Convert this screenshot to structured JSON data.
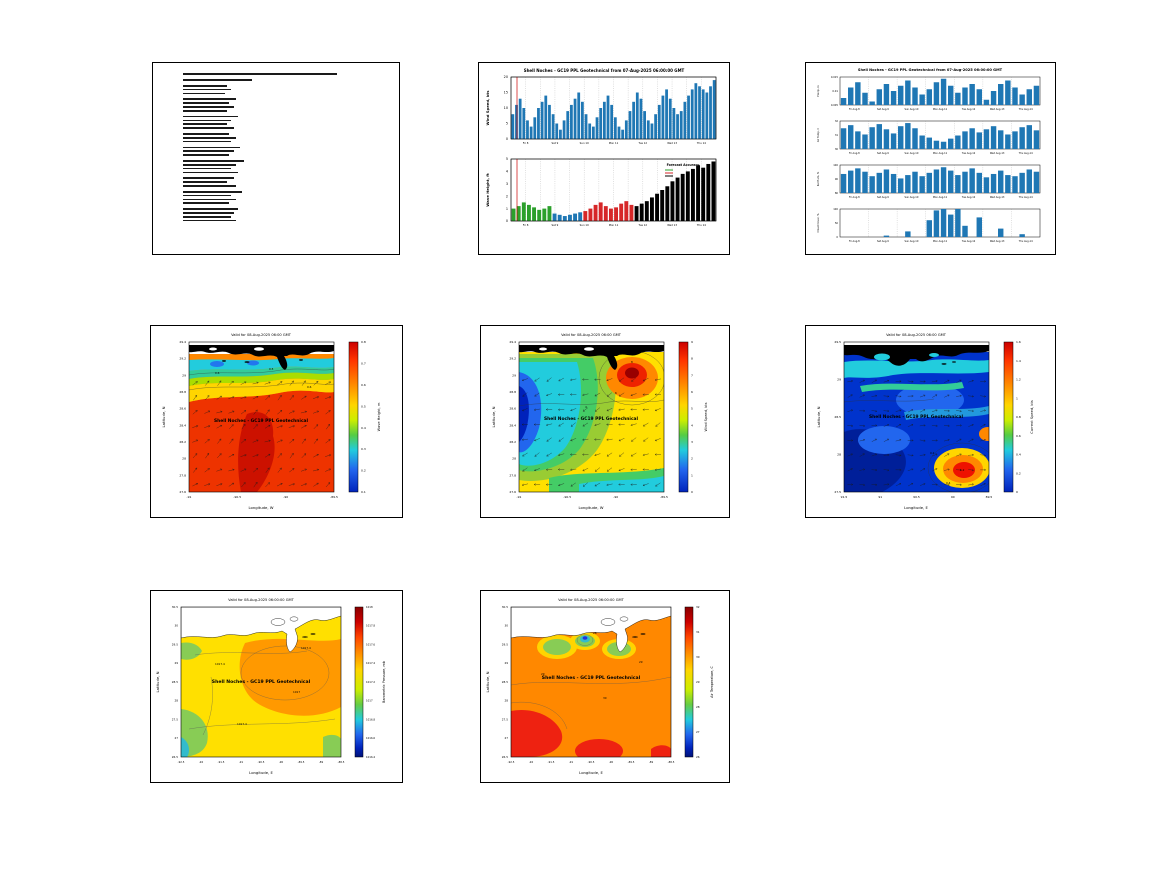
{
  "site_label": "Shell Noches - GC19 PPL Geotechnical",
  "chart_data": [
    {
      "type": "text",
      "name": "marine-forecast-text-report",
      "lines": [
        76,
        0,
        34,
        0,
        22,
        24,
        21,
        0,
        26,
        23,
        25,
        22,
        0,
        27,
        24,
        22,
        25,
        0,
        23,
        26,
        24,
        0,
        28,
        25,
        23,
        0,
        30,
        26,
        24,
        27,
        0,
        25,
        22,
        26,
        0,
        29,
        24,
        26,
        23,
        0,
        27,
        25,
        24,
        26
      ]
    },
    {
      "type": "bar",
      "name": "wind-wave-timeseries",
      "title": "Shell Noches - GC19 PPL Geotechnical from 07-Aug-2025 06:00:00 GMT",
      "xticklabels": [
        "Fri 8",
        "Sat 9",
        "Sun 10",
        "Mon 11",
        "Tue 12",
        "Wed 13",
        "Thu 14"
      ],
      "bar_colors": [
        "#1f77b4",
        "#2ca02c",
        "#d62728",
        "#000000"
      ],
      "wind": {
        "ylabel": "Wind Speed, kts",
        "ylim": [
          0,
          20
        ],
        "yticks": [
          "20",
          "15",
          "10",
          "5",
          "0"
        ],
        "values": [
          8,
          11,
          13,
          10,
          6,
          4,
          7,
          10,
          12,
          14,
          11,
          8,
          5,
          3,
          6,
          9,
          11,
          13,
          15,
          12,
          8,
          5,
          4,
          7,
          10,
          12,
          14,
          11,
          7,
          4,
          3,
          6,
          9,
          12,
          15,
          13,
          9,
          6,
          5,
          8,
          11,
          14,
          16,
          13,
          10,
          8,
          9,
          12,
          14,
          16,
          18,
          17,
          16,
          15,
          17,
          19
        ]
      },
      "wave": {
        "ylabel": "Wave Height, ft",
        "ylim": [
          0,
          5
        ],
        "yticks": [
          "5",
          "4",
          "3",
          "2",
          "1",
          "0"
        ],
        "legend": "Forecast Accuracy",
        "values": [
          {
            "v": 1.0,
            "c": 1
          },
          {
            "v": 1.2,
            "c": 1
          },
          {
            "v": 1.5,
            "c": 1
          },
          {
            "v": 1.3,
            "c": 1
          },
          {
            "v": 1.1,
            "c": 1
          },
          {
            "v": 0.9,
            "c": 1
          },
          {
            "v": 1.0,
            "c": 1
          },
          {
            "v": 1.2,
            "c": 1
          },
          {
            "v": 0.6,
            "c": 0
          },
          {
            "v": 0.5,
            "c": 0
          },
          {
            "v": 0.4,
            "c": 0
          },
          {
            "v": 0.5,
            "c": 0
          },
          {
            "v": 0.6,
            "c": 0
          },
          {
            "v": 0.7,
            "c": 0
          },
          {
            "v": 0.8,
            "c": 2
          },
          {
            "v": 1.0,
            "c": 2
          },
          {
            "v": 1.3,
            "c": 2
          },
          {
            "v": 1.5,
            "c": 2
          },
          {
            "v": 1.2,
            "c": 2
          },
          {
            "v": 1.0,
            "c": 2
          },
          {
            "v": 1.1,
            "c": 2
          },
          {
            "v": 1.4,
            "c": 2
          },
          {
            "v": 1.6,
            "c": 2
          },
          {
            "v": 1.3,
            "c": 2
          },
          {
            "v": 1.2,
            "c": 3
          },
          {
            "v": 1.4,
            "c": 3
          },
          {
            "v": 1.6,
            "c": 3
          },
          {
            "v": 1.9,
            "c": 3
          },
          {
            "v": 2.2,
            "c": 3
          },
          {
            "v": 2.5,
            "c": 3
          },
          {
            "v": 2.8,
            "c": 3
          },
          {
            "v": 3.2,
            "c": 3
          },
          {
            "v": 3.5,
            "c": 3
          },
          {
            "v": 3.8,
            "c": 3
          },
          {
            "v": 4.0,
            "c": 3
          },
          {
            "v": 4.2,
            "c": 3
          },
          {
            "v": 4.5,
            "c": 3
          },
          {
            "v": 4.3,
            "c": 3
          },
          {
            "v": 4.6,
            "c": 3
          },
          {
            "v": 4.8,
            "c": 3
          }
        ]
      }
    },
    {
      "type": "bar",
      "name": "misc-weather-timeseries",
      "title": "Shell Noches - GC19 PPL Geotechnical from 07-Aug-2025 06:00:00 GMT",
      "bar_colors": [
        "#1f77b4"
      ],
      "xticklabels": [
        "Fri Aug-8",
        "Sat Aug-9",
        "Sun Aug-10",
        "Mon Aug-11",
        "Tue Aug-12",
        "Wed Aug-13",
        "Thu Aug-14"
      ],
      "subplots": [
        {
          "ylabel": "Precip, in",
          "yticks": [
            "0.015",
            "0.01",
            "0.005"
          ],
          "ylim": [
            0,
            0.016
          ],
          "values": [
            0.004,
            0.01,
            0.013,
            0.007,
            0.002,
            0.009,
            0.012,
            0.008,
            0.011,
            0.014,
            0.01,
            0.006,
            0.009,
            0.013,
            0.015,
            0.011,
            0.007,
            0.01,
            0.012,
            0.009,
            0.003,
            0.008,
            0.012,
            0.014,
            0.01,
            0.006,
            0.009,
            0.011
          ]
        },
        {
          "ylabel": "Air Temp, C",
          "yticks": [
            "32",
            "31",
            "30"
          ],
          "ylim": [
            29.5,
            32.2
          ],
          "values": [
            31.5,
            31.8,
            31.2,
            30.9,
            31.6,
            31.9,
            31.4,
            31.0,
            31.7,
            32.0,
            31.5,
            30.8,
            30.6,
            30.3,
            30.2,
            30.5,
            30.8,
            31.2,
            31.5,
            31.1,
            31.4,
            31.7,
            31.3,
            30.9,
            31.2,
            31.6,
            31.8,
            31.3
          ]
        },
        {
          "ylabel": "Rel Hum, %",
          "yticks": [
            "100",
            "90",
            "80"
          ],
          "ylim": [
            75,
            100
          ],
          "values": [
            92,
            95,
            97,
            94,
            90,
            93,
            96,
            92,
            88,
            91,
            94,
            90,
            93,
            96,
            98,
            95,
            91,
            94,
            97,
            93,
            89,
            92,
            95,
            91,
            90,
            93,
            96,
            94
          ]
        },
        {
          "ylabel": "Cloud Cover, %",
          "yticks": [
            "100",
            "50",
            "0"
          ],
          "ylim": [
            0,
            100
          ],
          "values": [
            0,
            0,
            0,
            0,
            0,
            0,
            5,
            0,
            0,
            20,
            0,
            0,
            60,
            95,
            100,
            80,
            100,
            40,
            0,
            70,
            0,
            0,
            30,
            0,
            0,
            10,
            0,
            0
          ]
        }
      ]
    },
    {
      "type": "heatmap",
      "subtype": "filled-contour-map",
      "name": "wave-height-map",
      "title": "Valid for 08-Aug-2025 06:00 GMT",
      "xlabel": "Longitude, W",
      "ylabel": "Latitude, N",
      "xticks": [
        "-91",
        "-90.5",
        "-90",
        "-89.5"
      ],
      "yticks": [
        "29.4",
        "29.2",
        "29",
        "28.8",
        "28.6",
        "28.4",
        "28.2",
        "28",
        "27.8",
        "27.6"
      ],
      "colorbar": {
        "label": "Wave Height, m",
        "colormap": "jet",
        "range": [
          0.1,
          0.8
        ],
        "ticks": [
          "0.8",
          "0.7",
          "0.6",
          "0.5",
          "0.4",
          "0.3",
          "0.2",
          "0.1"
        ]
      },
      "contour_labels": [
        "0.6",
        "0.5",
        "0.6"
      ],
      "overlay_label": "Shell Noches - GC19 PPL Geotechnical"
    },
    {
      "type": "heatmap",
      "subtype": "filled-contour-map",
      "name": "wind-speed-map",
      "title": "Valid for 08-Aug-2025 06:00 GMT",
      "xlabel": "Longitude, W",
      "ylabel": "Latitude, N",
      "xticks": [
        "-91",
        "-90.5",
        "-90",
        "-89.5"
      ],
      "yticks": [
        "29.4",
        "29.2",
        "29",
        "28.8",
        "28.6",
        "28.4",
        "28.2",
        "28",
        "27.8",
        "27.6"
      ],
      "colorbar": {
        "label": "Wind Speed, kts",
        "colormap": "jet",
        "range": [
          0,
          9
        ],
        "ticks": [
          "9",
          "8",
          "7",
          "6",
          "5",
          "4",
          "3",
          "2",
          "1",
          "0"
        ]
      },
      "contour_labels": [
        "8",
        "6",
        "4"
      ],
      "overlay_label": "Shell Noches - GC19 PPL Geotechnical"
    },
    {
      "type": "heatmap",
      "subtype": "filled-contour-map",
      "name": "current-speed-map",
      "title": "Valid for 08-Aug-2025 06:00 GMT",
      "xlabel": "Longitude, E",
      "ylabel": "Latitude, N",
      "xticks": [
        "91.5",
        "91",
        "90.5",
        "90",
        "89.5"
      ],
      "yticks": [
        "29.5",
        "29",
        "28.5",
        "28",
        "27.5"
      ],
      "colorbar": {
        "label": "Current Speed, kts",
        "colormap": "jet",
        "range": [
          0,
          1.6
        ],
        "ticks": [
          "1.6",
          "1.4",
          "1.2",
          "1",
          "0.8",
          "0.6",
          "0.4",
          "0.2",
          "0"
        ]
      },
      "contour_labels": [
        "0.2",
        "0.4",
        "1.2"
      ],
      "overlay_label": "Shell Noches - GC19 PPL Geotechnical"
    },
    {
      "type": "heatmap",
      "subtype": "filled-contour-map",
      "name": "barometric-pressure-map",
      "title": "Valid for 08-Aug-2025 06:00:00 GMT",
      "xlabel": "Longitude, E",
      "ylabel": "Latitude, N",
      "xticks": [
        "-92.5",
        "-92",
        "-91.5",
        "-91",
        "-90.5",
        "-90",
        "-89.5",
        "-89",
        "-88.5"
      ],
      "yticks": [
        "30.5",
        "30",
        "29.5",
        "29",
        "28.5",
        "28",
        "27.5",
        "27",
        "26.5"
      ],
      "colorbar": {
        "label": "Barometric Pressure, mb",
        "colormap": "jet",
        "range": [
          1016.4,
          1018
        ],
        "ticks": [
          "1018",
          "1017.8",
          "1017.6",
          "1017.4",
          "1017.2",
          "1017",
          "1016.8",
          "1016.6",
          "1016.4"
        ]
      },
      "contour_labels": [
        "1017.4",
        "1017.4",
        "1017",
        "1017.4"
      ],
      "overlay_label": "Shell Noches - GC19 PPL Geotechnical"
    },
    {
      "type": "heatmap",
      "subtype": "filled-contour-map",
      "name": "air-temperature-map",
      "title": "Valid for 08-Aug-2025 06:00:00 GMT",
      "xlabel": "Longitude, E",
      "ylabel": "Latitude, N",
      "xticks": [
        "-92.5",
        "-92",
        "-91.5",
        "-91",
        "-90.5",
        "-90",
        "-89.5",
        "-89",
        "-88.5"
      ],
      "yticks": [
        "30.5",
        "30",
        "29.5",
        "29",
        "28.5",
        "28",
        "27.5",
        "27",
        "26.5"
      ],
      "colorbar": {
        "label": "Air Temperature, C",
        "colormap": "jet",
        "range": [
          26,
          32
        ],
        "ticks": [
          "32",
          "31",
          "30",
          "29",
          "28",
          "27",
          "26"
        ]
      },
      "contour_labels": [
        "29",
        "30",
        "29",
        "28"
      ],
      "overlay_label": "Shell Noches - GC19 PPL Geotechnical"
    }
  ]
}
